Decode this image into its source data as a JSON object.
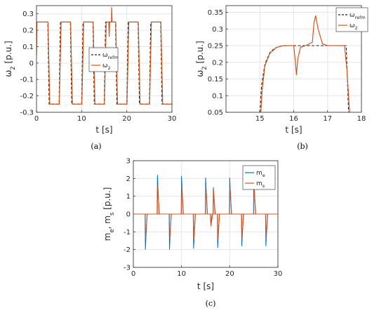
{
  "colors": {
    "reference": "#222222",
    "omega2": "#D95319",
    "me": "#0072BD",
    "ms": "#D95319",
    "grid": "#e6e6e6"
  },
  "chart_data": [
    {
      "id": "a",
      "caption": "(a)",
      "type": "line",
      "xlabel": "t [s]",
      "ylabel": {
        "base": "ω",
        "sub": "2",
        "rest": " [p.u.]"
      },
      "xlim": [
        0,
        30
      ],
      "ylim": [
        -0.3,
        0.35
      ],
      "xticks": [
        "0",
        "10",
        "20",
        "30"
      ],
      "yticks": [
        "-0.3",
        "-0.2",
        "-0.1",
        "0",
        "0.1",
        "0.2",
        "0.3"
      ],
      "grid": true,
      "legend": {
        "placement": "center-right",
        "entries": [
          {
            "base": "ω",
            "sub": "refm",
            "style": "dashed"
          },
          {
            "base": "ω",
            "sub": "2",
            "style": "solid"
          }
        ]
      },
      "series": [
        {
          "style": "dashed",
          "x": [
            0,
            2.5,
            2.8,
            5.0,
            5.3,
            7.5,
            7.8,
            10.0,
            10.3,
            12.5,
            12.8,
            15.0,
            15.3,
            17.5,
            17.8,
            20.0,
            20.3,
            22.5,
            22.8,
            25.0,
            25.3,
            27.5,
            27.8,
            30
          ],
          "y": [
            0.25,
            0.25,
            -0.25,
            -0.25,
            0.25,
            0.25,
            -0.25,
            -0.25,
            0.25,
            0.25,
            -0.25,
            -0.25,
            0.25,
            0.25,
            -0.25,
            -0.25,
            0.25,
            0.25,
            -0.25,
            -0.25,
            0.25,
            0.25,
            -0.25,
            -0.25
          ]
        },
        {
          "style": "solid",
          "x": [
            0,
            0.1,
            2.55,
            2.95,
            5.05,
            5.45,
            7.55,
            7.95,
            10.05,
            10.45,
            12.55,
            12.95,
            15.05,
            15.45,
            16.0,
            16.1,
            16.2,
            16.6,
            16.65,
            16.75,
            17.55,
            17.95,
            20.05,
            20.45,
            22.55,
            22.95,
            25.05,
            25.45,
            27.55,
            27.95,
            30
          ],
          "y": [
            0.05,
            0.25,
            0.25,
            -0.25,
            -0.25,
            0.25,
            0.25,
            -0.25,
            -0.25,
            0.25,
            0.25,
            -0.25,
            -0.25,
            0.25,
            0.25,
            0.16,
            0.25,
            0.25,
            0.34,
            0.25,
            0.25,
            -0.25,
            -0.25,
            0.25,
            0.25,
            -0.25,
            -0.25,
            0.25,
            0.25,
            -0.25,
            -0.25
          ]
        }
      ]
    },
    {
      "id": "b",
      "caption": "(b)",
      "type": "line",
      "xlabel": "t [s]",
      "ylabel": {
        "base": "ω",
        "sub": "2",
        "rest": " [p.u.]"
      },
      "xlim": [
        14,
        18
      ],
      "ylim": [
        0.05,
        0.37
      ],
      "xticks": [
        "15",
        "16",
        "17",
        "18"
      ],
      "yticks": [
        "0.05",
        "0.1",
        "0.15",
        "0.2",
        "0.25",
        "0.3",
        "0.35"
      ],
      "grid": true,
      "legend": {
        "placement": "top-right",
        "entries": [
          {
            "base": "ω",
            "sub": "refm",
            "style": "dashed"
          },
          {
            "base": "ω",
            "sub": "2",
            "style": "solid"
          }
        ]
      },
      "series": [
        {
          "style": "dashed",
          "x": [
            15.0,
            15.05,
            15.15,
            15.3,
            15.45,
            15.6,
            15.8,
            16.0,
            17.55,
            17.62
          ],
          "y": [
            0.05,
            0.13,
            0.195,
            0.23,
            0.243,
            0.248,
            0.25,
            0.25,
            0.25,
            0.05
          ]
        },
        {
          "style": "solid",
          "x": [
            15.03,
            15.07,
            15.15,
            15.3,
            15.5,
            15.7,
            16.0,
            16.05,
            16.08,
            16.12,
            16.2,
            16.35,
            16.55,
            16.6,
            16.65,
            16.72,
            16.85,
            17.0,
            17.5,
            17.57,
            17.65
          ],
          "y": [
            0.05,
            0.12,
            0.19,
            0.228,
            0.245,
            0.25,
            0.25,
            0.2,
            0.162,
            0.21,
            0.245,
            0.25,
            0.26,
            0.32,
            0.34,
            0.3,
            0.255,
            0.25,
            0.25,
            0.18,
            0.05
          ]
        }
      ]
    },
    {
      "id": "c",
      "caption": "(c)",
      "type": "line",
      "xlabel": "t [s]",
      "ylabel": {
        "parts": [
          {
            "t": "m"
          },
          {
            "s": "e"
          },
          {
            "t": ", m"
          },
          {
            "s": "s"
          },
          {
            "t": " [p.u.]"
          }
        ]
      },
      "xlim": [
        0,
        30
      ],
      "ylim": [
        -3,
        3
      ],
      "xticks": [
        "0",
        "10",
        "20",
        "30"
      ],
      "yticks": [
        "-3",
        "-2",
        "-1",
        "0",
        "1",
        "2",
        "3"
      ],
      "grid": true,
      "legend": {
        "placement": "top-right",
        "entries": [
          {
            "base": "m",
            "sub": "e",
            "style": "solid"
          },
          {
            "base": "m",
            "sub": "s",
            "style": "solid"
          }
        ]
      },
      "series": [
        {
          "style": "solid",
          "spikes": [
            [
              2.5,
              -2.0
            ],
            [
              5.0,
              2.2
            ],
            [
              7.5,
              -2.0
            ],
            [
              10.0,
              2.15
            ],
            [
              12.5,
              -1.95
            ],
            [
              15.0,
              2.05
            ],
            [
              16.05,
              -0.5
            ],
            [
              16.6,
              1.5
            ],
            [
              17.5,
              -1.9
            ],
            [
              20.0,
              2.05
            ],
            [
              22.5,
              -1.8
            ],
            [
              25.0,
              2.0
            ],
            [
              27.5,
              -1.8
            ]
          ]
        },
        {
          "style": "solid",
          "spikes": [
            [
              2.55,
              -1.4
            ],
            [
              5.05,
              1.6
            ],
            [
              7.55,
              -1.4
            ],
            [
              10.05,
              1.6
            ],
            [
              12.55,
              -1.4
            ],
            [
              15.05,
              1.6
            ],
            [
              16.1,
              -0.7
            ],
            [
              16.65,
              1.3
            ],
            [
              17.55,
              -1.4
            ],
            [
              20.05,
              1.6
            ],
            [
              22.55,
              -1.4
            ],
            [
              25.05,
              1.6
            ],
            [
              27.55,
              -1.4
            ]
          ]
        }
      ]
    }
  ]
}
